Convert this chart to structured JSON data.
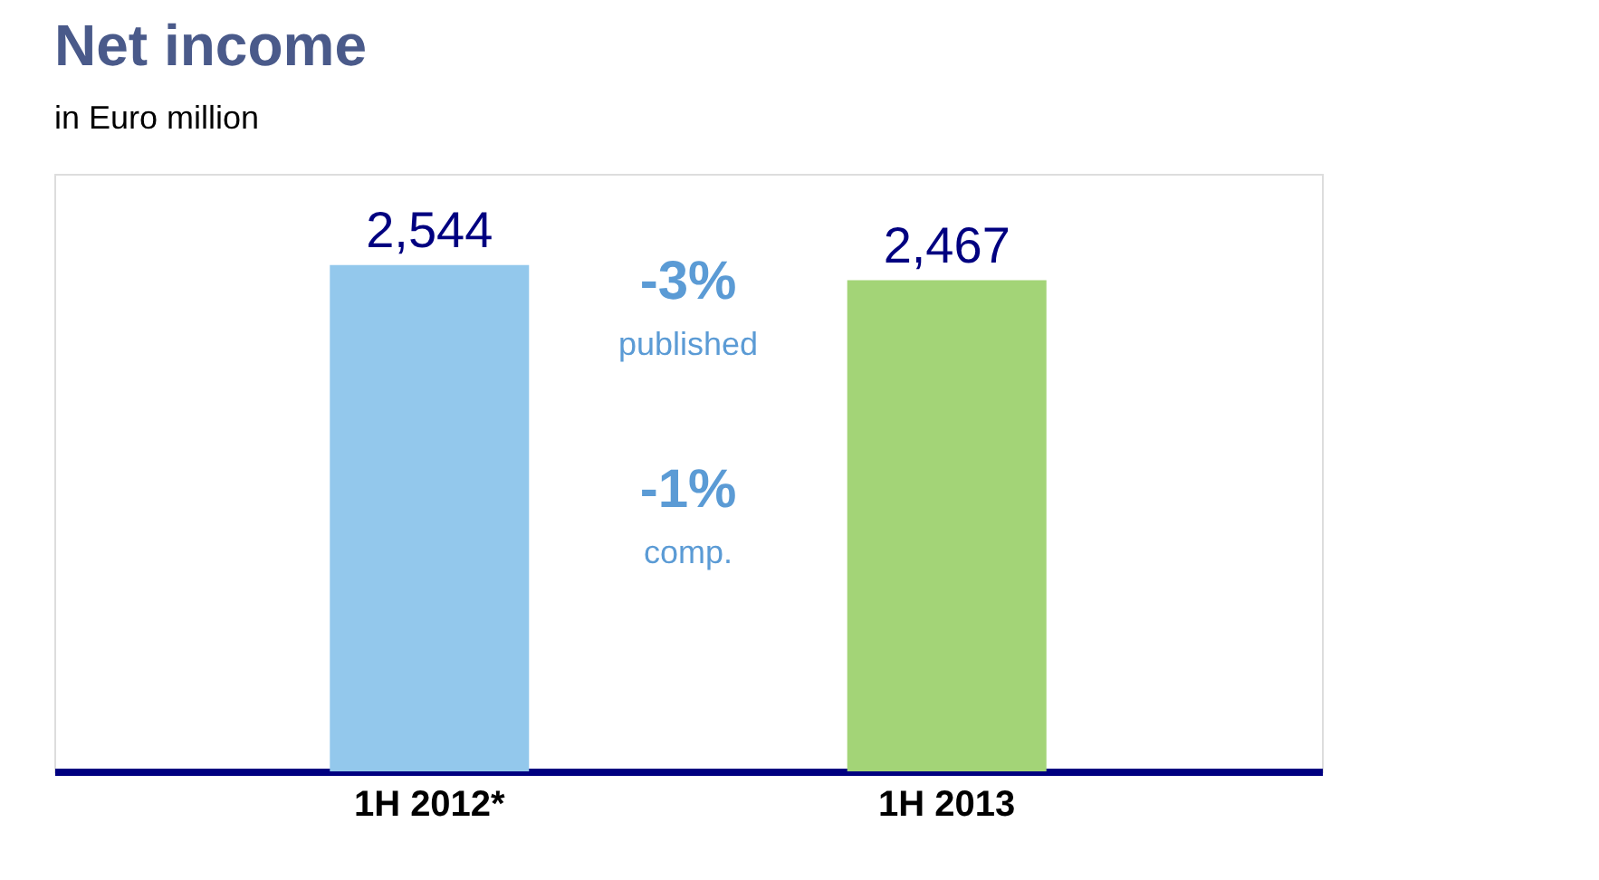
{
  "chart_data": {
    "type": "bar",
    "title": "Net income",
    "subtitle": "in Euro million",
    "categories": [
      "1H 2012*",
      "1H 2013"
    ],
    "values": [
      2544,
      2467
    ],
    "colors": [
      "#93c8ec",
      "#a3d477"
    ],
    "value_labels": [
      "2,544",
      "2,467"
    ],
    "annotations": [
      "-3%",
      "published",
      "-1%",
      "comp."
    ]
  }
}
